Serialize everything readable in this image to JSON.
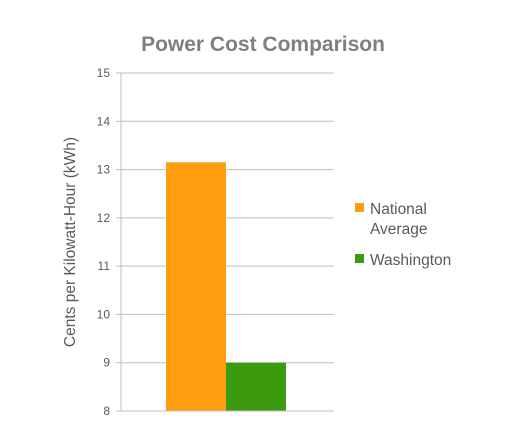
{
  "chart_data": {
    "type": "bar",
    "title": "Power Cost Comparison",
    "xlabel": "",
    "ylabel": "Cents per Kilowatt-Hour (kWh)",
    "ylim": [
      8,
      15
    ],
    "yticks": [
      "8",
      "9",
      "10",
      "11",
      "12",
      "13",
      "14",
      "15"
    ],
    "grid": true,
    "legend_position": "right",
    "series": [
      {
        "name": "National Average",
        "legend_lines": [
          "National",
          "Average"
        ],
        "value": 13.15,
        "color": "#ff9c0f"
      },
      {
        "name": "Washington",
        "legend_lines": [
          "Washington"
        ],
        "value": 9.0,
        "color": "#3c9a0e"
      }
    ]
  }
}
